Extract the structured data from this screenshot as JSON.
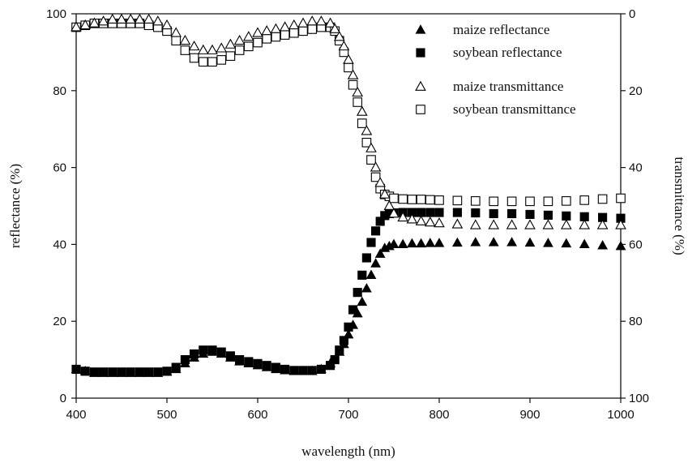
{
  "chart_data": {
    "type": "scatter",
    "xlabel": "wavelength (nm)",
    "ylabel": "reflectance (%)",
    "y2label": "transmittance (%)",
    "xlim": [
      400,
      1000
    ],
    "ylim": [
      0,
      100
    ],
    "y2lim": [
      0,
      100
    ],
    "y2_inverted": true,
    "xticks": [
      "400",
      "500",
      "600",
      "700",
      "800",
      "900",
      "1000"
    ],
    "yticks": [
      "0",
      "20",
      "40",
      "60",
      "80",
      "100"
    ],
    "y2ticks": [
      "0",
      "20",
      "40",
      "60",
      "80",
      "100"
    ],
    "grid": false,
    "legend_position": "top-right",
    "series": [
      {
        "name": "maize reflectance",
        "axis": "left",
        "marker": "triangle-filled",
        "x": [
          400,
          410,
          420,
          430,
          440,
          450,
          460,
          470,
          480,
          490,
          500,
          510,
          520,
          530,
          540,
          550,
          560,
          570,
          580,
          590,
          600,
          610,
          620,
          630,
          640,
          650,
          660,
          670,
          680,
          690,
          695,
          700,
          705,
          710,
          715,
          720,
          725,
          730,
          735,
          740,
          745,
          750,
          760,
          770,
          780,
          790,
          800,
          820,
          840,
          860,
          880,
          900,
          920,
          940,
          960,
          980,
          1000
        ],
        "y": [
          7.5,
          7,
          6.5,
          6.5,
          6.5,
          6.5,
          6.5,
          6.5,
          6.5,
          6.5,
          6.8,
          7.5,
          9,
          10.5,
          11.5,
          12,
          11.5,
          10.5,
          9.5,
          9,
          8.5,
          8,
          7.5,
          7.2,
          7,
          7,
          7,
          7.5,
          9,
          12,
          14,
          16.5,
          19,
          22,
          25,
          28.5,
          32,
          35,
          37.5,
          39,
          39.5,
          40,
          40,
          40.2,
          40.2,
          40.3,
          40.3,
          40.4,
          40.5,
          40.5,
          40.5,
          40.4,
          40.3,
          40.2,
          40,
          39.7,
          39.5
        ]
      },
      {
        "name": "soybean reflectance",
        "axis": "left",
        "marker": "square-filled",
        "x": [
          400,
          410,
          420,
          430,
          440,
          450,
          460,
          470,
          480,
          490,
          500,
          510,
          520,
          530,
          540,
          550,
          560,
          570,
          580,
          590,
          600,
          610,
          620,
          630,
          640,
          650,
          660,
          670,
          680,
          685,
          690,
          695,
          700,
          705,
          710,
          715,
          720,
          725,
          730,
          735,
          740,
          745,
          750,
          760,
          770,
          780,
          790,
          800,
          820,
          840,
          860,
          880,
          900,
          920,
          940,
          960,
          980,
          1000
        ],
        "y": [
          7.5,
          7,
          6.8,
          6.8,
          6.8,
          6.8,
          6.8,
          6.8,
          6.8,
          6.8,
          7,
          8,
          10,
          11.5,
          12.5,
          12.5,
          12,
          11,
          10,
          9.5,
          9,
          8.5,
          8,
          7.5,
          7.2,
          7.2,
          7.2,
          7.5,
          8.5,
          10,
          12.5,
          15,
          18.5,
          23,
          27.5,
          32,
          36.5,
          40.5,
          43.5,
          46,
          47.5,
          48,
          48.2,
          48.3,
          48.3,
          48.3,
          48.3,
          48.3,
          48.3,
          48.2,
          48,
          48,
          47.8,
          47.6,
          47.4,
          47.2,
          47,
          46.8
        ]
      },
      {
        "name": "maize transmittance",
        "axis": "right",
        "marker": "triangle-open",
        "x": [
          400,
          410,
          420,
          430,
          440,
          450,
          460,
          470,
          480,
          490,
          500,
          510,
          520,
          530,
          540,
          550,
          560,
          570,
          580,
          590,
          600,
          610,
          620,
          630,
          640,
          650,
          660,
          670,
          680,
          685,
          690,
          695,
          700,
          705,
          710,
          715,
          720,
          725,
          730,
          735,
          740,
          745,
          750,
          760,
          770,
          780,
          790,
          800,
          820,
          840,
          860,
          880,
          900,
          920,
          940,
          960,
          980,
          1000
        ],
        "y": [
          3.5,
          3,
          2.5,
          2,
          1.5,
          1.5,
          1.5,
          1.5,
          1.5,
          2,
          3,
          5,
          7,
          8.5,
          9.5,
          9.5,
          9,
          8,
          7,
          6,
          5,
          4.5,
          4,
          3.5,
          3,
          2.5,
          2,
          2,
          2.5,
          4,
          6,
          8.5,
          12,
          16,
          20.5,
          25.5,
          30.5,
          35,
          40,
          44,
          47,
          50,
          52,
          53,
          53.5,
          54,
          54.3,
          54.5,
          54.8,
          55,
          55,
          55,
          55,
          55,
          55,
          55,
          55,
          55
        ]
      },
      {
        "name": "soybean transmittance",
        "axis": "right",
        "marker": "square-open",
        "x": [
          400,
          410,
          420,
          430,
          440,
          450,
          460,
          470,
          480,
          490,
          500,
          510,
          520,
          530,
          540,
          550,
          560,
          570,
          580,
          590,
          600,
          610,
          620,
          630,
          640,
          650,
          660,
          670,
          680,
          685,
          690,
          695,
          700,
          705,
          710,
          715,
          720,
          725,
          730,
          735,
          740,
          745,
          750,
          760,
          770,
          780,
          790,
          800,
          820,
          840,
          860,
          880,
          900,
          920,
          940,
          960,
          980,
          1000
        ],
        "y": [
          3.5,
          3,
          2.5,
          2.5,
          2.5,
          2.5,
          2.5,
          2.5,
          3,
          3.5,
          4.5,
          7,
          9.5,
          11.5,
          12.5,
          12.5,
          12,
          11,
          9.5,
          8.5,
          7.5,
          6.5,
          6,
          5.5,
          5,
          4.5,
          4,
          3.5,
          3.5,
          4.5,
          7,
          10,
          14,
          18.5,
          23,
          28.5,
          33.5,
          38,
          42.5,
          45.5,
          47,
          47.5,
          48,
          48.2,
          48.3,
          48.3,
          48.4,
          48.5,
          48.6,
          48.7,
          48.8,
          48.8,
          48.8,
          48.8,
          48.7,
          48.5,
          48.2,
          48
        ]
      }
    ]
  }
}
